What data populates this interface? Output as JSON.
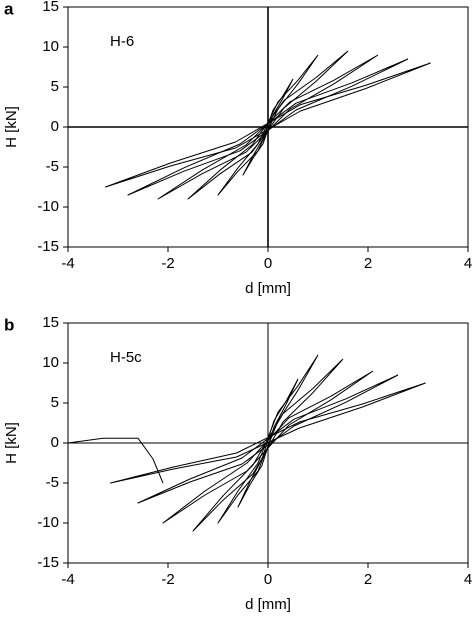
{
  "chart_data": [
    {
      "type": "line",
      "panel_label": "a",
      "annotation": "H-6",
      "xlabel": "d [mm]",
      "ylabel": "H [kN]",
      "xlim": [
        -4,
        4
      ],
      "ylim": [
        -15,
        15
      ],
      "xticks": [
        -4,
        -2,
        0,
        2,
        4
      ],
      "yticks": [
        -15,
        -10,
        -5,
        0,
        5,
        10,
        15
      ],
      "series": [
        {
          "color": "#000000",
          "x": [
            0.5,
            0.3,
            0.1,
            -0.1,
            -0.3,
            -0.5,
            -0.3,
            -0.1,
            0.1,
            0.3,
            0.5
          ],
          "values": [
            6,
            3.9,
            2.1,
            -1.5,
            -3.6,
            -6,
            -3.9,
            -2.1,
            1.5,
            3.6,
            6
          ]
        },
        {
          "color": "#000000",
          "x": [
            1,
            0.6,
            0.2,
            -0.2,
            -0.6,
            -1,
            -0.6,
            -0.2,
            0.2,
            0.6,
            1
          ],
          "values": [
            9,
            5.85,
            3.15,
            -2.13,
            -5.1,
            -8.5,
            -5.53,
            -2.98,
            2.25,
            5.4,
            9
          ]
        },
        {
          "color": "#000000",
          "x": [
            1.6,
            0.96,
            0.32,
            -0.32,
            -0.96,
            -1.6,
            -0.96,
            -0.32,
            0.32,
            0.96,
            1.6
          ],
          "values": [
            9.5,
            6.18,
            3.33,
            -2.25,
            -5.4,
            -9,
            -5.85,
            -3.15,
            2.38,
            5.7,
            9.5
          ]
        },
        {
          "color": "#000000",
          "x": [
            2.2,
            1.32,
            0.44,
            -0.44,
            -1.32,
            -2.2,
            -1.32,
            -0.44,
            0.44,
            1.32,
            2.2
          ],
          "values": [
            9,
            5.85,
            3.15,
            -2.25,
            -5.4,
            -9,
            -5.85,
            -3.15,
            2.25,
            5.4,
            9
          ]
        },
        {
          "color": "#000000",
          "x": [
            2.8,
            1.68,
            0.56,
            -0.56,
            -1.68,
            -2.8,
            -1.68,
            -0.56,
            0.56,
            1.68,
            2.8
          ],
          "values": [
            8.5,
            5.53,
            2.98,
            -2.13,
            -5.1,
            -8.5,
            -5.53,
            -2.98,
            2.13,
            5.1,
            8.5
          ]
        },
        {
          "color": "#000000",
          "x": [
            3.25,
            1.95,
            0.65,
            -0.65,
            -1.95,
            -3.25,
            -1.95,
            -0.65,
            0.65,
            1.95,
            3.25
          ],
          "values": [
            8,
            5.2,
            2.8,
            -1.88,
            -4.5,
            -7.5,
            -4.88,
            -2.63,
            2,
            4.8,
            8
          ]
        }
      ]
    },
    {
      "type": "line",
      "panel_label": "b",
      "annotation": "H-5c",
      "xlabel": "d [mm]",
      "ylabel": "H [kN]",
      "xlim": [
        -4,
        4
      ],
      "ylim": [
        -15,
        15
      ],
      "xticks": [
        -4,
        -2,
        0,
        2,
        4
      ],
      "yticks": [
        -15,
        -10,
        -5,
        0,
        5,
        10,
        15
      ],
      "series": [
        {
          "color": "#000000",
          "x": [
            -4,
            -3.3,
            -2.6,
            -2.3,
            -2.1
          ],
          "values": [
            0,
            0.6,
            0.6,
            -2,
            -5
          ]
        },
        {
          "color": "#000000",
          "x": [
            0.6,
            0.36,
            0.12,
            -0.12,
            -0.36,
            -0.6,
            -0.36,
            -0.12,
            0.12,
            0.36,
            0.6
          ],
          "values": [
            8,
            5.2,
            2.8,
            -2,
            -4.8,
            -8,
            -5.2,
            -2.8,
            2,
            4.8,
            8
          ]
        },
        {
          "color": "#000000",
          "x": [
            1,
            0.6,
            0.2,
            -0.2,
            -0.6,
            -1,
            -0.6,
            -0.2,
            0.2,
            0.6,
            1
          ],
          "values": [
            11,
            7.15,
            3.85,
            -2.5,
            -6,
            -10,
            -6.5,
            -3.5,
            2.75,
            6.6,
            11
          ]
        },
        {
          "color": "#000000",
          "x": [
            1.5,
            0.9,
            0.3,
            -0.3,
            -0.9,
            -1.5,
            -0.9,
            -0.3,
            0.3,
            0.9,
            1.5
          ],
          "values": [
            10.5,
            6.83,
            3.68,
            -2.75,
            -6.6,
            -11,
            -7.15,
            -3.85,
            2.63,
            6.3,
            10.5
          ]
        },
        {
          "color": "#000000",
          "x": [
            2.1,
            1.26,
            0.42,
            -0.42,
            -1.26,
            -2.1,
            -1.26,
            -0.42,
            0.42,
            1.26,
            2.1
          ],
          "values": [
            9,
            5.85,
            3.15,
            -2.5,
            -6,
            -10,
            -6.5,
            -3.5,
            2.25,
            5.4,
            9
          ]
        },
        {
          "color": "#000000",
          "x": [
            2.6,
            1.56,
            0.52,
            -0.52,
            -1.56,
            -2.6,
            -1.56,
            -0.52,
            0.52,
            1.56,
            2.6
          ],
          "values": [
            8.5,
            5.53,
            2.98,
            -1.88,
            -4.5,
            -7.5,
            -4.88,
            -2.63,
            2.13,
            5.1,
            8.5
          ]
        },
        {
          "color": "#000000",
          "x": [
            3.15,
            1.89,
            0.63,
            -0.63,
            -1.89,
            -3.15,
            -1.89,
            -0.63,
            0.63,
            1.89,
            3.15
          ],
          "values": [
            7.5,
            4.88,
            2.63,
            -1.25,
            -3,
            -5,
            -3.25,
            -1.75,
            1.88,
            4.5,
            7.5
          ]
        }
      ]
    }
  ]
}
